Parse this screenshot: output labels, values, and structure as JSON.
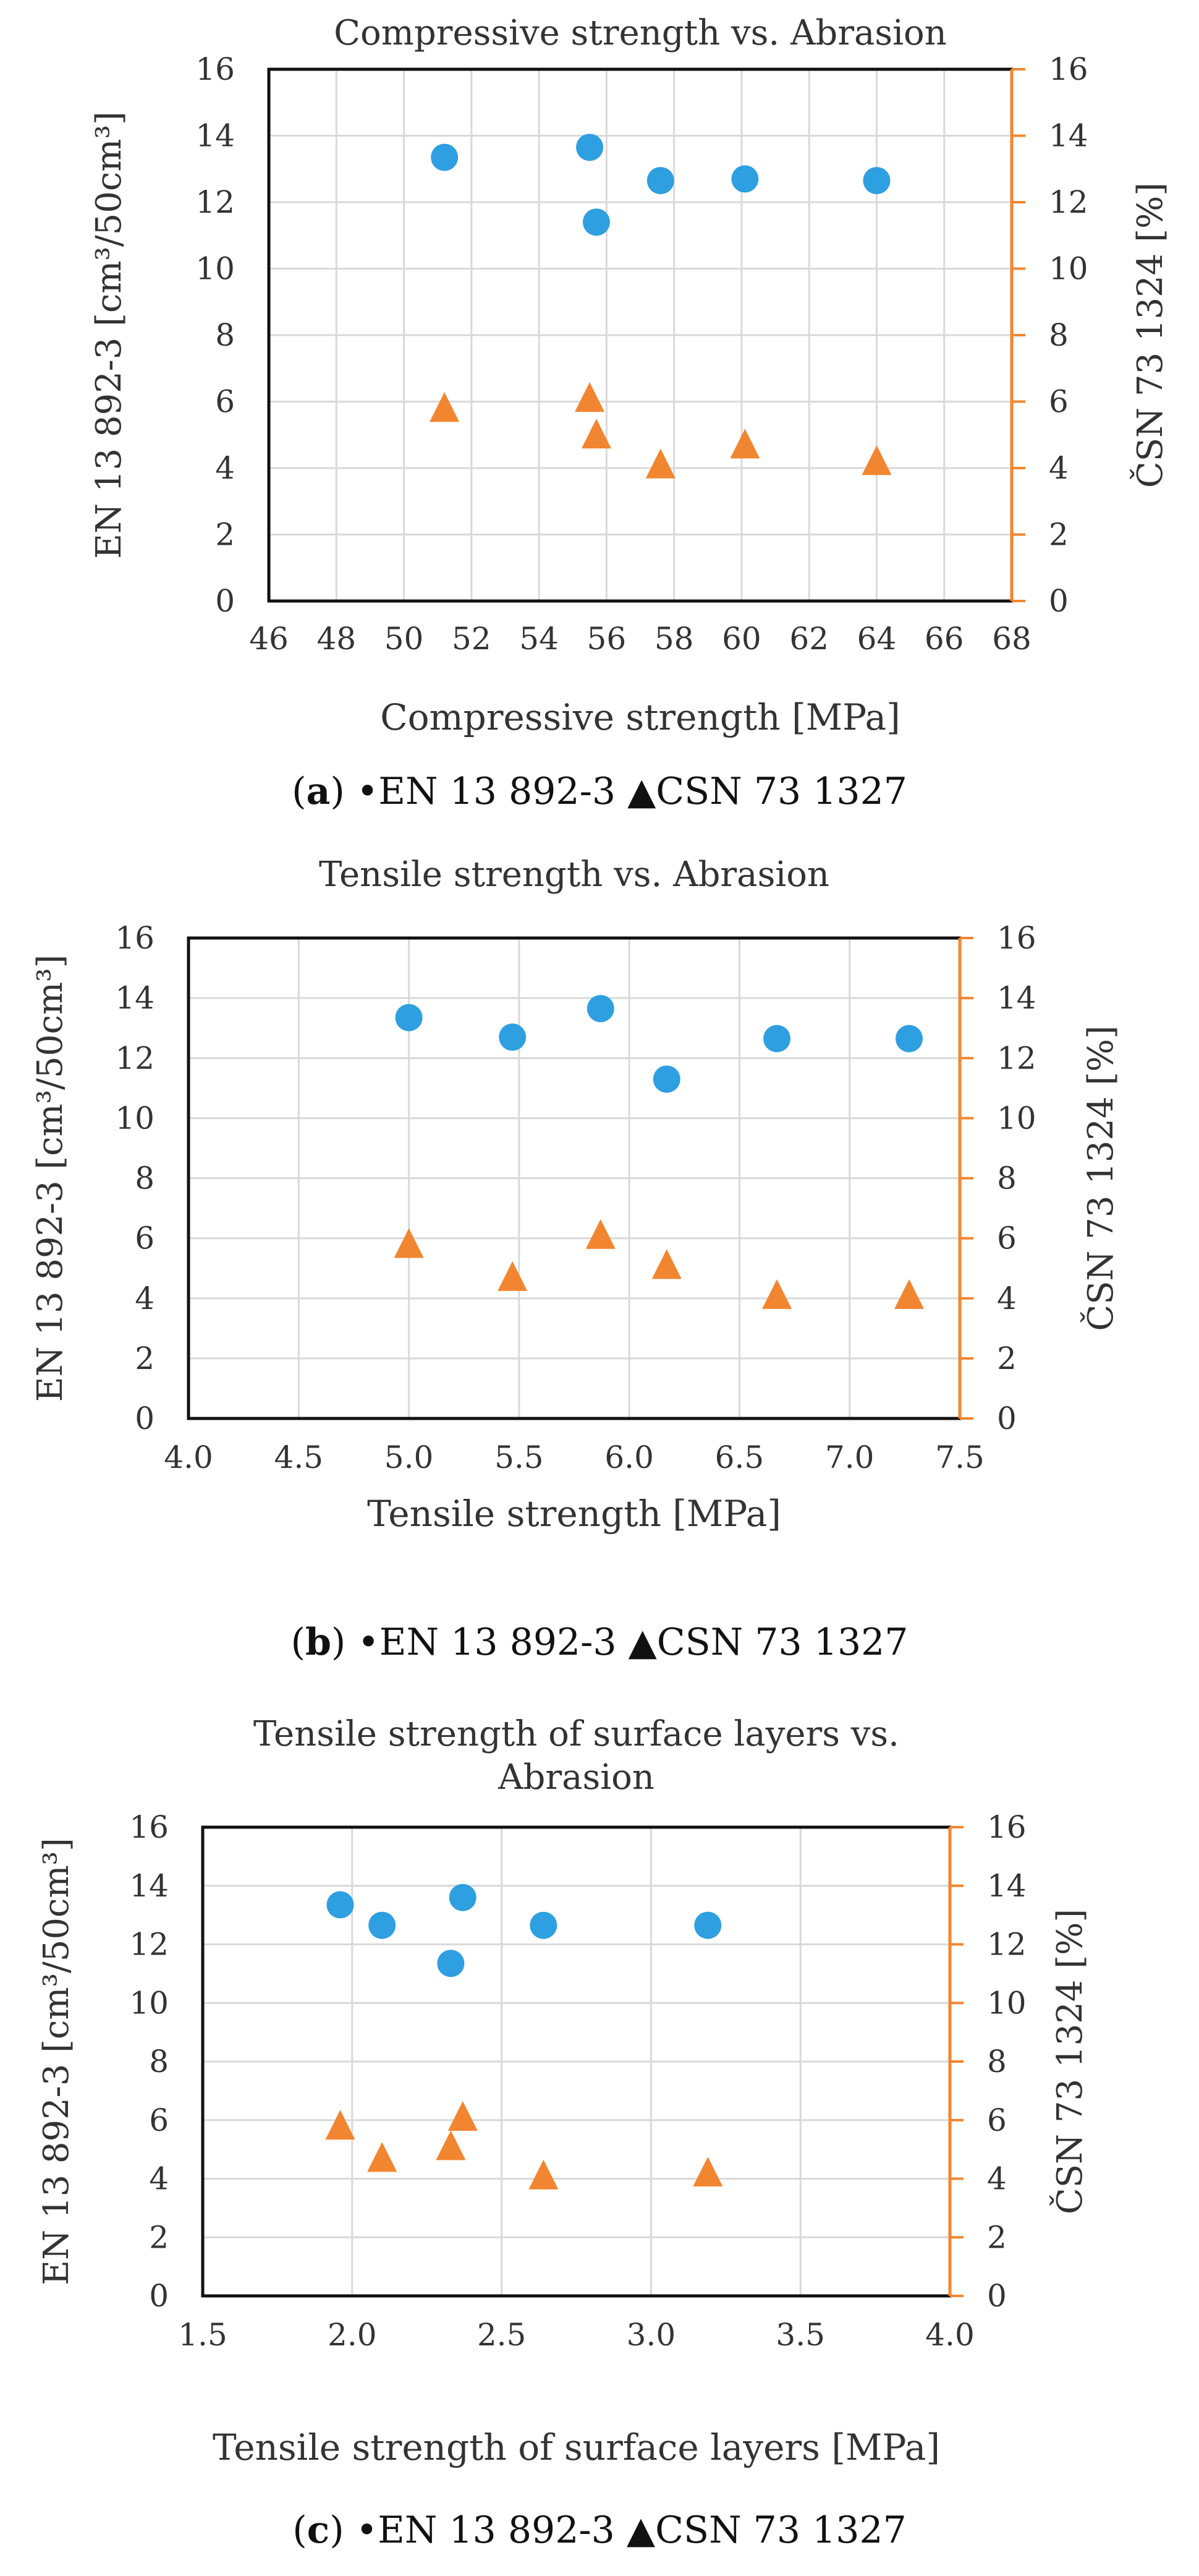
{
  "chart_data": [
    {
      "type": "scatter",
      "title": "Compressive strength vs. Abrasion",
      "xlabel": "Compressive strength [MPa]",
      "ylabel_left": "EN 13 892-3 [cm³/50cm³]",
      "ylabel_right": "ČSN 73 1324 [%]",
      "xlim": [
        46,
        68
      ],
      "xticks": [
        "46",
        "48",
        "50",
        "52",
        "54",
        "56",
        "58",
        "60",
        "62",
        "64",
        "66",
        "68"
      ],
      "ylim": [
        0,
        16
      ],
      "yticks": [
        "0",
        "2",
        "4",
        "6",
        "8",
        "10",
        "12",
        "14",
        "16"
      ],
      "caption": {
        "letter": "a",
        "series1": "•EN 13 892-3",
        "series2": "▲CSN 73 1327"
      },
      "series": [
        {
          "marker": "circle",
          "color": "#2e9fe0",
          "x": [
            51.2,
            55.5,
            55.7,
            57.6,
            60.1,
            64.0
          ],
          "y": [
            13.35,
            13.65,
            11.4,
            12.65,
            12.7,
            12.65
          ]
        },
        {
          "marker": "triangle",
          "color": "#f28530",
          "x": [
            51.2,
            55.5,
            55.7,
            57.6,
            60.1,
            64.0
          ],
          "y": [
            5.8,
            6.1,
            5.0,
            4.1,
            4.7,
            4.2
          ]
        }
      ]
    },
    {
      "type": "scatter",
      "title": "Tensile strength vs. Abrasion",
      "xlabel": "Tensile strength [MPa]",
      "ylabel_left": "EN 13 892-3 [cm³/50cm³]",
      "ylabel_right": "ČSN 73 1324 [%]",
      "xlim": [
        4.0,
        7.5
      ],
      "xticks": [
        "4.0",
        "4.5",
        "5.0",
        "5.5",
        "6.0",
        "6.5",
        "7.0",
        "7.5"
      ],
      "ylim": [
        0,
        16
      ],
      "yticks": [
        "0",
        "2",
        "4",
        "6",
        "8",
        "10",
        "12",
        "14",
        "16"
      ],
      "caption": {
        "letter": "b",
        "series1": "•EN 13 892-3",
        "series2": "▲CSN 73 1327"
      },
      "series": [
        {
          "marker": "circle",
          "color": "#2e9fe0",
          "x": [
            5.0,
            5.47,
            5.87,
            6.17,
            6.67,
            7.27
          ],
          "y": [
            13.35,
            12.7,
            13.65,
            11.3,
            12.65,
            12.65
          ]
        },
        {
          "marker": "triangle",
          "color": "#f28530",
          "x": [
            5.0,
            5.47,
            5.87,
            6.17,
            6.67,
            7.27
          ],
          "y": [
            5.8,
            4.7,
            6.1,
            5.1,
            4.1,
            4.1
          ]
        }
      ]
    },
    {
      "type": "scatter",
      "title": "Tensile strength of surface layers vs. Abrasion",
      "title_lines": [
        "Tensile strength of surface layers vs.",
        "Abrasion"
      ],
      "xlabel": "Tensile strength of surface layers [MPa]",
      "ylabel_left": "EN 13 892-3 [cm³/50cm³]",
      "ylabel_right": "ČSN 73 1324 [%]",
      "xlim": [
        1.5,
        4.0
      ],
      "xticks": [
        "1.5",
        "2.0",
        "2.5",
        "3.0",
        "3.5",
        "4.0"
      ],
      "ylim": [
        0,
        16
      ],
      "yticks": [
        "0",
        "2",
        "4",
        "6",
        "8",
        "10",
        "12",
        "14",
        "16"
      ],
      "caption": {
        "letter": "c",
        "series1": "•EN 13 892-3",
        "series2": "▲CSN 73 1327"
      },
      "series": [
        {
          "marker": "circle",
          "color": "#2e9fe0",
          "x": [
            1.96,
            2.1,
            2.33,
            2.37,
            2.64,
            3.19
          ],
          "y": [
            13.35,
            12.65,
            11.35,
            13.6,
            12.65,
            12.65
          ]
        },
        {
          "marker": "triangle",
          "color": "#f28530",
          "x": [
            1.96,
            2.1,
            2.33,
            2.37,
            2.64,
            3.19
          ],
          "y": [
            5.8,
            4.7,
            5.1,
            6.1,
            4.1,
            4.2
          ]
        }
      ]
    }
  ]
}
